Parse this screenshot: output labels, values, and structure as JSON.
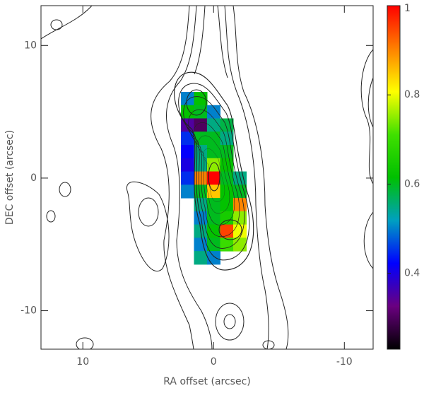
{
  "chart_data": {
    "type": "image",
    "xlabel": "RA offset (arcsec)",
    "ylabel": "DEC offset (arcsec)",
    "xlim": [
      13.2,
      -12.2
    ],
    "ylim": [
      -12.9,
      13
    ],
    "xticks": [
      10,
      0,
      -10
    ],
    "yticks": [
      -10,
      0,
      10
    ],
    "x": [
      2,
      1,
      0,
      -1,
      -2
    ],
    "y": [
      6,
      5,
      4,
      3,
      2,
      1,
      0,
      -1,
      -2,
      -3,
      -4,
      -5,
      -6
    ],
    "values": [
      [
        0.5,
        0.62,
        null,
        null,
        null
      ],
      [
        0.62,
        0.6,
        0.5,
        null,
        null
      ],
      [
        0.35,
        0.3,
        0.55,
        0.58,
        null
      ],
      [
        0.45,
        0.6,
        0.6,
        0.55,
        null
      ],
      [
        0.42,
        0.55,
        0.6,
        0.6,
        null
      ],
      [
        0.4,
        0.55,
        0.75,
        0.62,
        null
      ],
      [
        0.45,
        0.9,
        1,
        0.6,
        0.55
      ],
      [
        0.5,
        0.6,
        0.85,
        0.62,
        0.6
      ],
      [
        null,
        0.55,
        0.6,
        0.62,
        0.9
      ],
      [
        null,
        0.5,
        0.6,
        0.65,
        0.75
      ],
      [
        null,
        0.55,
        0.62,
        0.95,
        0.8
      ],
      [
        null,
        0.5,
        0.6,
        0.7,
        0.75
      ],
      [
        null,
        0.55,
        0.5,
        null,
        null
      ]
    ],
    "clim": [
      0.23,
      1
    ],
    "cticks": [
      0.4,
      0.6,
      0.8,
      1
    ],
    "colormap": [
      "#000000",
      "#6a0080",
      "#0000ff",
      "#00a0c0",
      "#00c000",
      "#40e000",
      "#ffff00",
      "#ff8000",
      "#ff0000"
    ]
  }
}
